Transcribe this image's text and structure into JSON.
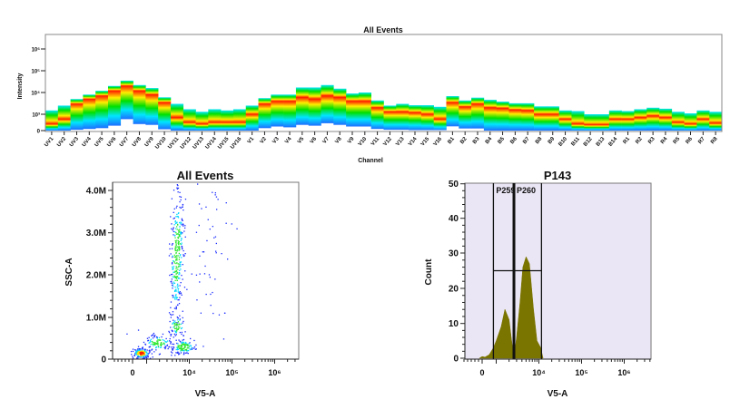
{
  "chart_data": [
    {
      "type": "heatmap",
      "title": "All Events",
      "xlabel": "Channel",
      "ylabel": "Intensity",
      "y_scale": "biexponential",
      "y_ticks": [
        "0",
        "10³",
        "10⁴",
        "10⁵",
        "10⁶"
      ],
      "color_scale": [
        "#1e6fff",
        "#00e5ff",
        "#00e000",
        "#ffee00",
        "#ff1a00"
      ],
      "channels": [
        {
          "name": "UV1",
          "low": 0,
          "peak": 400,
          "high": 1500
        },
        {
          "name": "UV2",
          "low": 0,
          "peak": 700,
          "high": 2500
        },
        {
          "name": "UV3",
          "low": 50,
          "peak": 3000,
          "high": 5000
        },
        {
          "name": "UV4",
          "low": 100,
          "peak": 5000,
          "high": 8000
        },
        {
          "name": "UV5",
          "low": 150,
          "peak": 7000,
          "high": 12000
        },
        {
          "name": "UV6",
          "low": 300,
          "peak": 12000,
          "high": 20000
        },
        {
          "name": "UV7",
          "low": 700,
          "peak": 20000,
          "high": 35000
        },
        {
          "name": "UV8",
          "low": 400,
          "peak": 12000,
          "high": 22000
        },
        {
          "name": "UV9",
          "low": 350,
          "peak": 8000,
          "high": 16000
        },
        {
          "name": "UV10",
          "low": 80,
          "peak": 3500,
          "high": 6000
        },
        {
          "name": "UV11",
          "low": 0,
          "peak": 800,
          "high": 3000
        },
        {
          "name": "UV12",
          "low": 0,
          "peak": 500,
          "high": 1700
        },
        {
          "name": "UV13",
          "low": 0,
          "peak": 400,
          "high": 1300
        },
        {
          "name": "UV14",
          "low": 0,
          "peak": 500,
          "high": 1700
        },
        {
          "name": "UV15",
          "low": 0,
          "peak": 500,
          "high": 1500
        },
        {
          "name": "UV16",
          "low": 0,
          "peak": 500,
          "high": 1700
        },
        {
          "name": "V1",
          "low": 0,
          "peak": 1000,
          "high": 2500
        },
        {
          "name": "V2",
          "low": 150,
          "peak": 3000,
          "high": 5500
        },
        {
          "name": "V3",
          "low": 250,
          "peak": 4000,
          "high": 8000
        },
        {
          "name": "V4",
          "low": 200,
          "peak": 4000,
          "high": 8000
        },
        {
          "name": "V5",
          "low": 350,
          "peak": 6000,
          "high": 17000
        },
        {
          "name": "V6",
          "low": 300,
          "peak": 5000,
          "high": 17000
        },
        {
          "name": "V7",
          "low": 450,
          "peak": 7000,
          "high": 22000
        },
        {
          "name": "V8",
          "low": 350,
          "peak": 6000,
          "high": 15000
        },
        {
          "name": "V9",
          "low": 250,
          "peak": 4000,
          "high": 9000
        },
        {
          "name": "V10",
          "low": 250,
          "peak": 4000,
          "high": 10000
        },
        {
          "name": "V11",
          "low": 100,
          "peak": 2000,
          "high": 4300
        },
        {
          "name": "V12",
          "low": 50,
          "peak": 1300,
          "high": 2500
        },
        {
          "name": "V13",
          "low": 50,
          "peak": 1300,
          "high": 3000
        },
        {
          "name": "V14",
          "low": 30,
          "peak": 1200,
          "high": 2600
        },
        {
          "name": "V15",
          "low": 30,
          "peak": 1000,
          "high": 2600
        },
        {
          "name": "V16",
          "low": 30,
          "peak": 700,
          "high": 2200
        },
        {
          "name": "B1",
          "low": 260,
          "peak": 3500,
          "high": 6800
        },
        {
          "name": "B2",
          "low": 130,
          "peak": 2200,
          "high": 4300
        },
        {
          "name": "B3",
          "low": 130,
          "peak": 3000,
          "high": 5800
        },
        {
          "name": "B4",
          "low": 0,
          "peak": 2000,
          "high": 4600
        },
        {
          "name": "B5",
          "low": 0,
          "peak": 1900,
          "high": 3800
        },
        {
          "name": "B6",
          "low": 0,
          "peak": 1600,
          "high": 3200
        },
        {
          "name": "B7",
          "low": 0,
          "peak": 1500,
          "high": 3200
        },
        {
          "name": "B8",
          "low": 0,
          "peak": 1000,
          "high": 2300
        },
        {
          "name": "B9",
          "low": 0,
          "peak": 1000,
          "high": 2300
        },
        {
          "name": "B10",
          "low": 0,
          "peak": 700,
          "high": 1500
        },
        {
          "name": "B11",
          "low": 0,
          "peak": 400,
          "high": 1400
        },
        {
          "name": "B12",
          "low": 0,
          "peak": 350,
          "high": 1000
        },
        {
          "name": "B13",
          "low": 0,
          "peak": 350,
          "high": 1000
        },
        {
          "name": "B14",
          "low": 0,
          "peak": 700,
          "high": 1500
        },
        {
          "name": "R1",
          "low": 0,
          "peak": 700,
          "high": 1400
        },
        {
          "name": "R2",
          "low": 0,
          "peak": 800,
          "high": 1700
        },
        {
          "name": "R3",
          "low": 0,
          "peak": 900,
          "high": 2000
        },
        {
          "name": "R4",
          "low": 0,
          "peak": 800,
          "high": 1800
        },
        {
          "name": "R5",
          "low": 0,
          "peak": 500,
          "high": 1300
        },
        {
          "name": "R6",
          "low": 0,
          "peak": 400,
          "high": 1100
        },
        {
          "name": "R7",
          "low": 0,
          "peak": 700,
          "high": 1500
        },
        {
          "name": "R8",
          "low": 0,
          "peak": 450,
          "high": 1300
        }
      ]
    },
    {
      "type": "scatter",
      "title": "All Events",
      "xlabel": "V5-A",
      "ylabel": "SSC-A",
      "x_scale": "biexponential",
      "x_ticks": [
        "0",
        "10⁴",
        "10⁵",
        "10⁶"
      ],
      "y_ticks": [
        "0",
        "1.0M",
        "2.0M",
        "3.0M",
        "4.0M"
      ],
      "ylim": [
        0,
        4200000
      ],
      "density_colors": [
        "#1a2cff",
        "#00d8ff",
        "#2ee82e",
        "#ffe000",
        "#ff1a00"
      ],
      "populations": [
        {
          "v5a": 600,
          "ssc": 150000,
          "share": 0.22
        },
        {
          "v5a": 1800,
          "ssc": 400000,
          "share": 0.12
        },
        {
          "v5a": 7000,
          "ssc": 300000,
          "share": 0.16
        },
        {
          "v5a": 5000,
          "ssc": 2500000,
          "share": 0.36
        },
        {
          "v5a": 5000,
          "ssc": 800000,
          "share": 0.08
        },
        {
          "v5a": 30000,
          "ssc": 2500000,
          "share": 0.06
        }
      ]
    },
    {
      "type": "area",
      "title": "P143",
      "xlabel": "V5-A",
      "ylabel": "Count",
      "x_scale": "biexponential",
      "x_ticks": [
        "0",
        "10⁴",
        "10⁵",
        "10⁶"
      ],
      "y_ticks": [
        "0",
        "10",
        "20",
        "30",
        "40",
        "50"
      ],
      "ylim": [
        0,
        50
      ],
      "fill_color": "#7a7400",
      "background_color": "#ebe6f5",
      "x": [
        -200,
        0,
        200,
        500,
        800,
        1000,
        1300,
        1600,
        2000,
        2300,
        2600,
        3000,
        3600,
        4200,
        5000,
        6000,
        7500,
        9000,
        11000,
        12500
      ],
      "y": [
        0,
        0.5,
        0.3,
        1,
        3,
        5,
        9,
        14,
        11,
        5,
        0,
        6,
        16,
        26,
        29,
        27,
        14,
        5,
        3,
        0
      ],
      "gates": [
        {
          "name": "P259",
          "min": 800,
          "max": 2600,
          "level": 25
        },
        {
          "name": "P260",
          "min": 2600,
          "max": 11500,
          "level": 25
        }
      ]
    }
  ]
}
